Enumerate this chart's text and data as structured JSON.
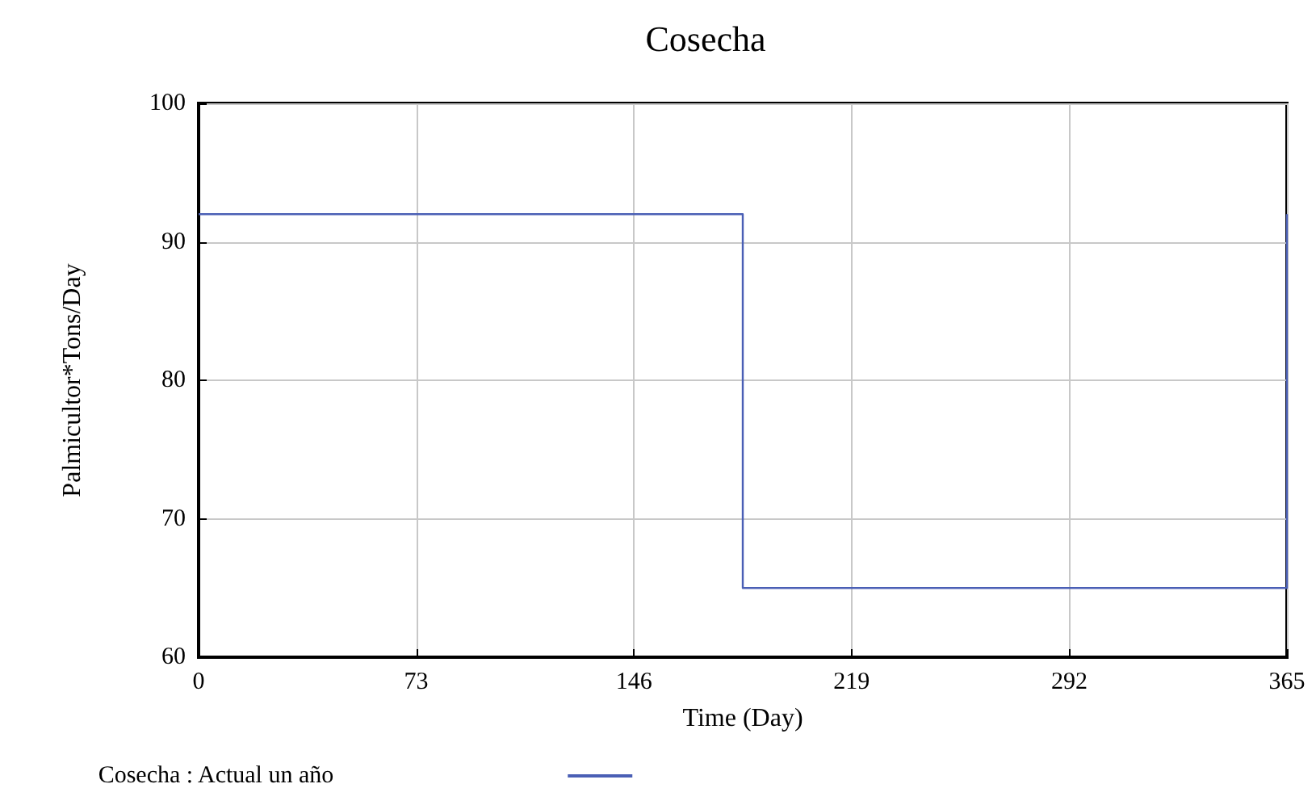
{
  "chart_data": {
    "type": "line",
    "title": "Cosecha",
    "xlabel": "Time (Day)",
    "ylabel": "Palmicultor*Tons/Day",
    "series": [
      {
        "name": "Cosecha : Actual un año",
        "color": "#4a5fb5",
        "x": [
          0,
          182.5,
          182.5,
          365,
          365
        ],
        "values": [
          92,
          92,
          65,
          65,
          92
        ]
      }
    ],
    "xlim": [
      0,
      365
    ],
    "xticks": [
      0,
      73,
      146,
      219,
      292,
      365
    ],
    "ylim": [
      60,
      100
    ],
    "yticks": [
      60,
      70,
      80,
      90,
      100
    ],
    "grid": true,
    "legend": "bottom left",
    "marker": "none",
    "line_style": "solid"
  }
}
